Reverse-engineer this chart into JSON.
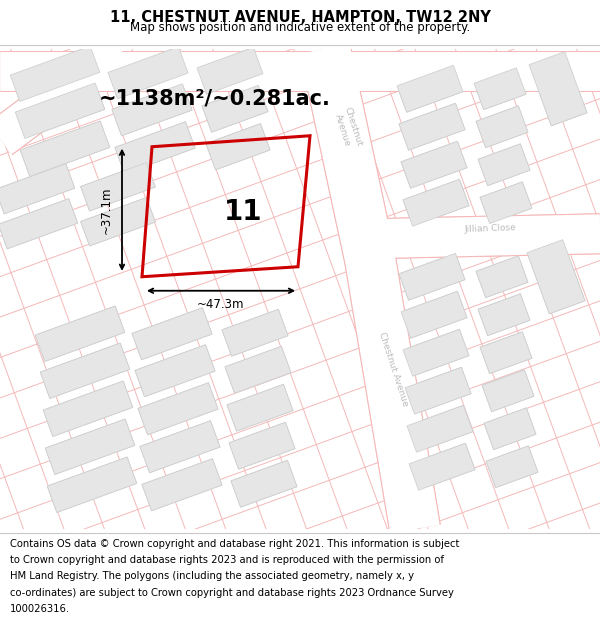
{
  "title": "11, CHESTNUT AVENUE, HAMPTON, TW12 2NY",
  "subtitle": "Map shows position and indicative extent of the property.",
  "footer": "Contains OS data © Crown copyright and database right 2021. This information is subject to Crown copyright and database rights 2023 and is reproduced with the permission of HM Land Registry. The polygons (including the associated geometry, namely x, y co-ordinates) are subject to Crown copyright and database rights 2023 Ordnance Survey 100026316.",
  "area_label": "~1138m²/~0.281ac.",
  "number_label": "11",
  "width_label": "~47.3m",
  "height_label": "~37.1m",
  "street_top": "Chestnut\nAvenue",
  "street_bottom": "Chestnut Avenue",
  "street_jillian": "Jillian Close",
  "title_fontsize": 10.5,
  "subtitle_fontsize": 8.5,
  "footer_fontsize": 7.2,
  "pink": "#f5b8b8",
  "pink_light": "#fce8e8",
  "red": "#cc0000",
  "block_fc": "#e6e6e6",
  "block_ec": "#d0d0d0",
  "street_color": "#bbbbbb",
  "white": "#ffffff",
  "map_bg": "#f9f9f9"
}
